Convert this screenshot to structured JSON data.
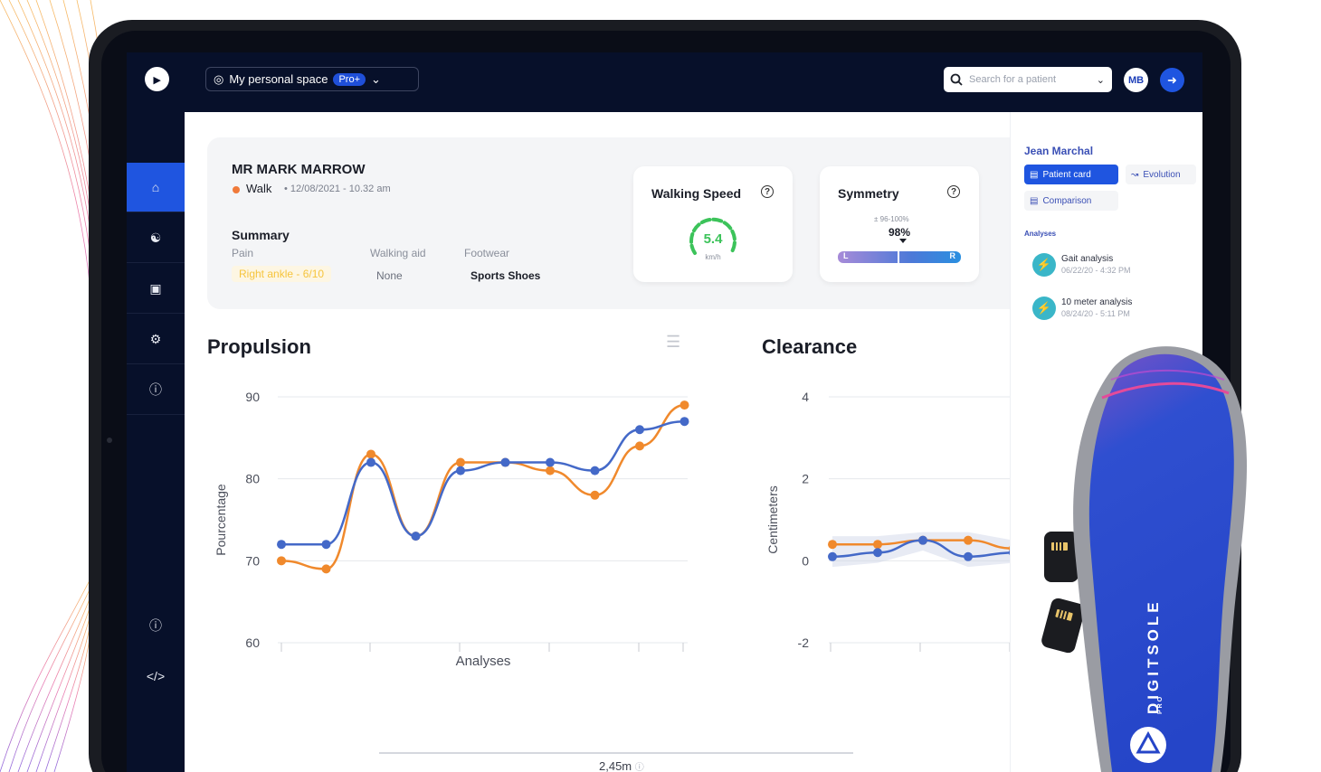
{
  "app": {
    "space_label": "My personal space",
    "plan_badge": "Pro+",
    "search_placeholder": "Search for a patient",
    "avatar_initials": "MB"
  },
  "colors": {
    "navy": "#07102a",
    "accent_blue": "#1f55e0",
    "orange": "#f0892c",
    "series_blue": "#4469c8",
    "green": "#3cc35a"
  },
  "sidebar": {
    "items": [
      {
        "icon": "home-icon",
        "active": true
      },
      {
        "icon": "patients-icon",
        "active": false
      },
      {
        "icon": "briefcase-icon",
        "active": false
      },
      {
        "icon": "settings-icon",
        "active": false
      },
      {
        "icon": "help-icon",
        "active": false
      },
      {
        "icon": "info-icon",
        "active": false
      },
      {
        "icon": "code-icon",
        "active": false
      }
    ]
  },
  "patient": {
    "name": "MR MARK MARROW",
    "activity": "Walk",
    "date": "12/08/2021 - 10.32 am",
    "summary_title": "Summary",
    "pain_label": "Pain",
    "pain_value": "Right ankle - 6/10",
    "walking_aid_label": "Walking aid",
    "walking_aid_value": "None",
    "footwear_label": "Footwear",
    "footwear_value": "Sports Shoes"
  },
  "kpis": {
    "walking_speed": {
      "title": "Walking Speed",
      "value": "5.4",
      "unit": "km/h"
    },
    "symmetry": {
      "title": "Symmetry",
      "range": "96-100%",
      "value": "98%",
      "left_label": "L",
      "right_label": "R",
      "level": 0.98
    }
  },
  "right_panel": {
    "name": "Jean Marchal",
    "patient_card_label": "Patient card",
    "evolution_label": "Evolution",
    "comparison_label": "Comparison",
    "analyses_title": "Analyses",
    "analyses": [
      {
        "title": "Gait analysis",
        "date": "06/22/20 - 4:32 PM"
      },
      {
        "title": "10 meter analysis",
        "date": "08/24/20 - 5:11 PM"
      }
    ]
  },
  "bottom": {
    "distance": "2,45m"
  },
  "product": {
    "brand": "DIGITSOLE",
    "suffix": "PRO"
  },
  "chart_data": [
    {
      "type": "line",
      "title": "Propulsion",
      "xlabel": "Analyses",
      "ylabel": "Pourcentage",
      "ylim": [
        60,
        90
      ],
      "yticks": [
        60,
        70,
        80,
        90
      ],
      "x": [
        1,
        2,
        3,
        4,
        5,
        6,
        7,
        8,
        9,
        10
      ],
      "series": [
        {
          "color": "#f0892c",
          "values": [
            70,
            69,
            83,
            73,
            82,
            82,
            81,
            78,
            84,
            89
          ]
        },
        {
          "color": "#4469c8",
          "values": [
            72,
            72,
            82,
            73,
            81,
            82,
            82,
            81,
            86,
            87
          ]
        }
      ]
    },
    {
      "type": "line",
      "title": "Clearance",
      "xlabel": "",
      "ylabel": "Centimeters",
      "ylim": [
        -2,
        4
      ],
      "yticks": [
        -2,
        0,
        2,
        4
      ],
      "x": [
        1,
        2,
        3,
        4,
        5
      ],
      "series": [
        {
          "color": "#f0892c",
          "values": [
            0.4,
            0.4,
            0.5,
            0.5,
            0.3
          ]
        },
        {
          "color": "#4469c8",
          "values": [
            0.1,
            0.2,
            0.5,
            0.1,
            0.2
          ]
        }
      ]
    }
  ]
}
